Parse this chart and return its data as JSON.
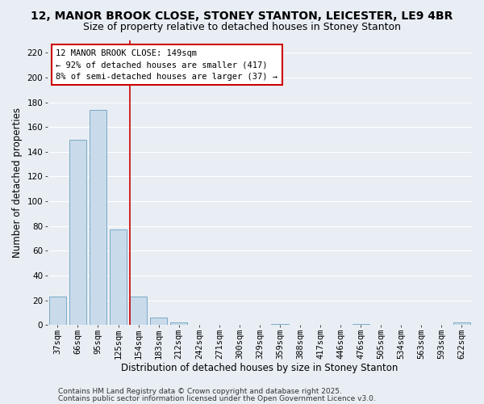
{
  "title1": "12, MANOR BROOK CLOSE, STONEY STANTON, LEICESTER, LE9 4BR",
  "title2": "Size of property relative to detached houses in Stoney Stanton",
  "bar_labels": [
    "37sqm",
    "66sqm",
    "95sqm",
    "125sqm",
    "154sqm",
    "183sqm",
    "212sqm",
    "242sqm",
    "271sqm",
    "300sqm",
    "329sqm",
    "359sqm",
    "388sqm",
    "417sqm",
    "446sqm",
    "476sqm",
    "505sqm",
    "534sqm",
    "563sqm",
    "593sqm",
    "622sqm"
  ],
  "bar_values": [
    23,
    150,
    174,
    77,
    23,
    6,
    2,
    0,
    0,
    0,
    0,
    1,
    0,
    0,
    0,
    1,
    0,
    0,
    0,
    0,
    2
  ],
  "bar_color": "#c9daea",
  "bar_edgecolor": "#7aaac8",
  "vline_color": "#cc0000",
  "xlabel": "Distribution of detached houses by size in Stoney Stanton",
  "ylabel": "Number of detached properties",
  "ylim": [
    0,
    230
  ],
  "yticks": [
    0,
    20,
    40,
    60,
    80,
    100,
    120,
    140,
    160,
    180,
    200,
    220
  ],
  "annotation_title": "12 MANOR BROOK CLOSE: 149sqm",
  "annotation_line1": "← 92% of detached houses are smaller (417)",
  "annotation_line2": "8% of semi-detached houses are larger (37) →",
  "footer1": "Contains HM Land Registry data © Crown copyright and database right 2025.",
  "footer2": "Contains public sector information licensed under the Open Government Licence v3.0.",
  "background_color": "#e8eef4",
  "grid_color": "#ffffff",
  "title_fontsize": 10,
  "subtitle_fontsize": 9,
  "axis_label_fontsize": 8.5,
  "tick_fontsize": 7.5,
  "annotation_fontsize": 7.5,
  "footer_fontsize": 6.5
}
